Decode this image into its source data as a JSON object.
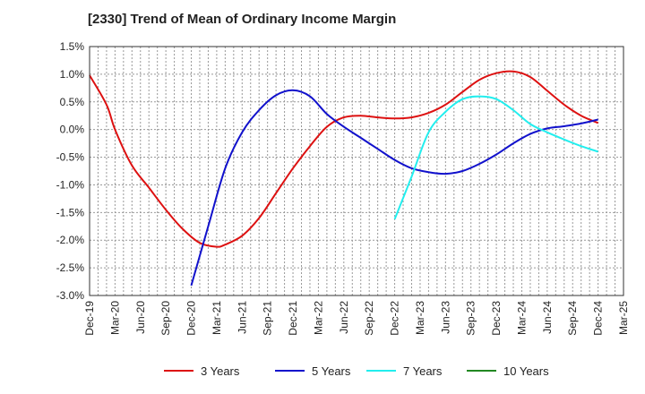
{
  "chart_data": {
    "type": "line",
    "title": "[2330]  Trend of Mean of Ordinary Income Margin",
    "xlabel": "",
    "ylabel": "",
    "ylim": [
      -3.0,
      1.5
    ],
    "y_ticks": [
      "1.5%",
      "1.0%",
      "0.5%",
      "0.0%",
      "-0.5%",
      "-1.0%",
      "-1.5%",
      "-2.0%",
      "-2.5%",
      "-3.0%"
    ],
    "y_tick_values": [
      1.5,
      1.0,
      0.5,
      0.0,
      -0.5,
      -1.0,
      -1.5,
      -2.0,
      -2.5,
      -3.0
    ],
    "x_ticks": [
      "Dec-19",
      "Mar-20",
      "Jun-20",
      "Sep-20",
      "Dec-20",
      "Mar-21",
      "Jun-21",
      "Sep-21",
      "Dec-21",
      "Mar-22",
      "Jun-22",
      "Sep-22",
      "Dec-22",
      "Mar-23",
      "Jun-23",
      "Sep-23",
      "Dec-23",
      "Mar-24",
      "Jun-24",
      "Sep-24",
      "Dec-24",
      "Mar-25"
    ],
    "grid": true,
    "legend_position": "bottom",
    "series": [
      {
        "name": "3 Years",
        "color": "#dd1111",
        "points": [
          [
            "Dec-19",
            0.98
          ],
          [
            "Feb-20",
            0.45
          ],
          [
            "Mar-20",
            0.0
          ],
          [
            "May-20",
            -0.65
          ],
          [
            "Jul-20",
            -1.05
          ],
          [
            "Sep-20",
            -1.45
          ],
          [
            "Nov-20",
            -1.8
          ],
          [
            "Jan-21",
            -2.05
          ],
          [
            "Mar-21",
            -2.12
          ],
          [
            "Apr-21",
            -2.08
          ],
          [
            "Jun-21",
            -1.92
          ],
          [
            "Aug-21",
            -1.6
          ],
          [
            "Oct-21",
            -1.15
          ],
          [
            "Dec-21",
            -0.7
          ],
          [
            "Feb-22",
            -0.3
          ],
          [
            "Apr-22",
            0.05
          ],
          [
            "Jun-22",
            0.22
          ],
          [
            "Aug-22",
            0.25
          ],
          [
            "Oct-22",
            0.22
          ],
          [
            "Dec-22",
            0.2
          ],
          [
            "Feb-23",
            0.22
          ],
          [
            "Apr-23",
            0.3
          ],
          [
            "Jun-23",
            0.45
          ],
          [
            "Aug-23",
            0.68
          ],
          [
            "Oct-23",
            0.9
          ],
          [
            "Dec-23",
            1.02
          ],
          [
            "Feb-24",
            1.05
          ],
          [
            "Apr-24",
            0.95
          ],
          [
            "Jun-24",
            0.7
          ],
          [
            "Aug-24",
            0.45
          ],
          [
            "Oct-24",
            0.25
          ],
          [
            "Dec-24",
            0.12
          ]
        ]
      },
      {
        "name": "5 Years",
        "color": "#1111cc",
        "points": [
          [
            "Dec-20",
            -2.82
          ],
          [
            "Feb-21",
            -1.75
          ],
          [
            "Apr-21",
            -0.7
          ],
          [
            "Jun-21",
            -0.05
          ],
          [
            "Aug-21",
            0.35
          ],
          [
            "Oct-21",
            0.62
          ],
          [
            "Dec-21",
            0.71
          ],
          [
            "Feb-22",
            0.6
          ],
          [
            "Apr-22",
            0.28
          ],
          [
            "Jun-22",
            0.05
          ],
          [
            "Aug-22",
            -0.15
          ],
          [
            "Oct-22",
            -0.35
          ],
          [
            "Dec-22",
            -0.55
          ],
          [
            "Feb-23",
            -0.7
          ],
          [
            "Apr-23",
            -0.77
          ],
          [
            "Jun-23",
            -0.8
          ],
          [
            "Aug-23",
            -0.75
          ],
          [
            "Oct-23",
            -0.62
          ],
          [
            "Dec-23",
            -0.45
          ],
          [
            "Feb-24",
            -0.25
          ],
          [
            "Apr-24",
            -0.08
          ],
          [
            "Jun-24",
            0.02
          ],
          [
            "Aug-24",
            0.06
          ],
          [
            "Oct-24",
            0.11
          ],
          [
            "Dec-24",
            0.18
          ]
        ]
      },
      {
        "name": "7 Years",
        "color": "#22eeee",
        "points": [
          [
            "Dec-22",
            -1.62
          ],
          [
            "Feb-23",
            -0.85
          ],
          [
            "Apr-23",
            -0.05
          ],
          [
            "Jun-23",
            0.32
          ],
          [
            "Aug-23",
            0.55
          ],
          [
            "Oct-23",
            0.6
          ],
          [
            "Dec-23",
            0.55
          ],
          [
            "Feb-24",
            0.35
          ],
          [
            "Apr-24",
            0.1
          ],
          [
            "Jun-24",
            -0.05
          ],
          [
            "Aug-24",
            -0.18
          ],
          [
            "Oct-24",
            -0.3
          ],
          [
            "Dec-24",
            -0.4
          ]
        ]
      },
      {
        "name": "10 Years",
        "color": "#228822",
        "points": []
      }
    ]
  }
}
